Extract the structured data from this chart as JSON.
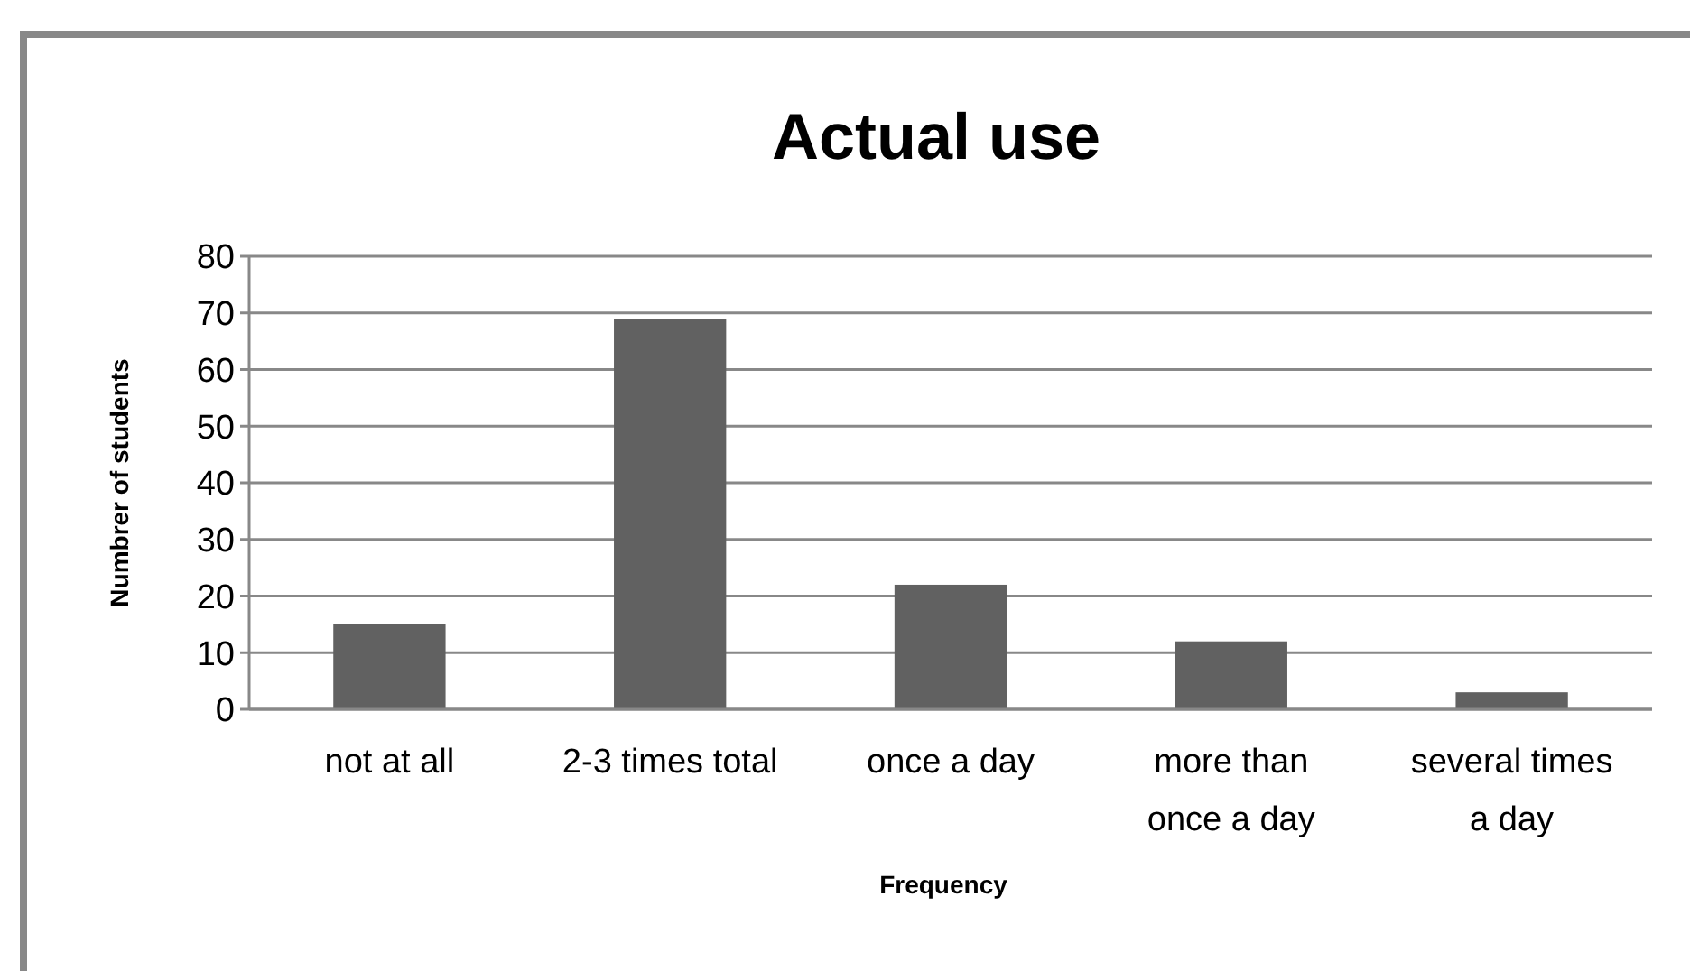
{
  "chart_data": {
    "type": "bar",
    "title": "Actual use",
    "xlabel": "Frequency",
    "ylabel": "Numbrer of students",
    "categories": [
      "not at all",
      "2-3 times total",
      "once a day",
      "more than once a day",
      "several times a day"
    ],
    "values": [
      15,
      69,
      22,
      12,
      3
    ],
    "color": "#616161",
    "ylim": [
      0,
      80
    ],
    "yticks": [
      0,
      10,
      20,
      30,
      40,
      50,
      60,
      70,
      80
    ],
    "grid": "y"
  }
}
